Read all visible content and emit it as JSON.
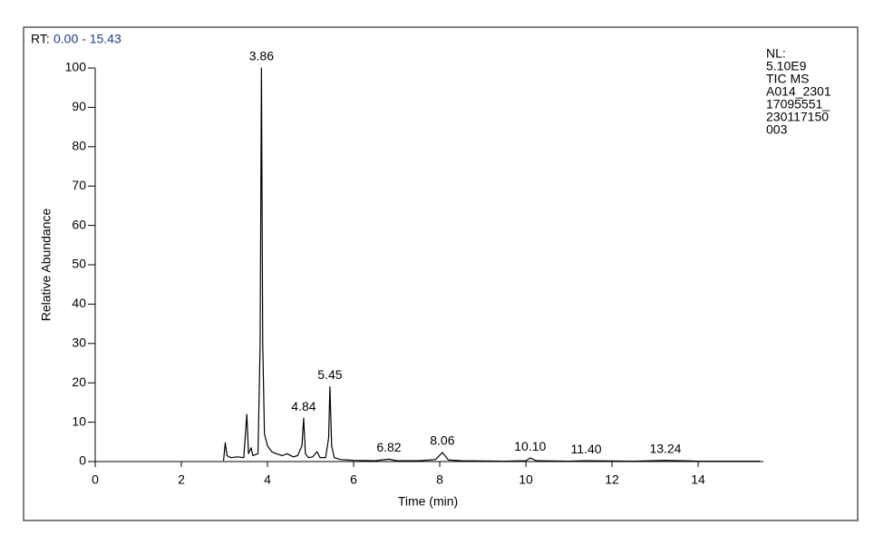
{
  "chart_data": {
    "type": "line",
    "rt_label": "RT:",
    "rt_range": "0.00 - 15.43",
    "info": [
      "NL:",
      "5.10E9",
      "TIC  MS",
      "A014_2301",
      "17095551_",
      "230117150",
      "003"
    ],
    "x_label": "Time (min)",
    "y_label": "Relative Abundance",
    "color": "#000000",
    "xlim": [
      0,
      15.43
    ],
    "ylim": [
      0,
      100
    ],
    "xticks": [
      0,
      2,
      4,
      6,
      8,
      10,
      12,
      14
    ],
    "yticks": [
      0,
      10,
      20,
      30,
      40,
      50,
      60,
      70,
      80,
      90,
      100
    ],
    "x": [
      2.98,
      3.02,
      3.06,
      3.15,
      3.3,
      3.45,
      3.52,
      3.56,
      3.62,
      3.66,
      3.78,
      3.83,
      3.86,
      3.89,
      3.93,
      4.0,
      4.1,
      4.2,
      4.35,
      4.45,
      4.6,
      4.7,
      4.8,
      4.84,
      4.88,
      4.95,
      5.05,
      5.15,
      5.22,
      5.35,
      5.42,
      5.45,
      5.49,
      5.55,
      5.7,
      6.0,
      6.5,
      6.82,
      7.0,
      7.5,
      7.9,
      8.06,
      8.2,
      8.5,
      9.5,
      10.0,
      10.1,
      10.25,
      11.0,
      11.4,
      12.5,
      13.24,
      14.0,
      15.43
    ],
    "values": [
      0.2,
      4.8,
      1.5,
      1.0,
      1.2,
      1.0,
      12,
      2,
      3.5,
      1.5,
      2,
      30,
      100,
      30,
      7,
      4,
      2.5,
      2,
      1.5,
      2,
      1.2,
      1.5,
      4,
      11,
      2,
      1,
      1.2,
      2.5,
      1,
      1,
      6,
      19,
      4,
      1,
      0.5,
      0.3,
      0.2,
      0.6,
      0.2,
      0.2,
      0.5,
      2.3,
      0.4,
      0.2,
      0.1,
      0.2,
      0.9,
      0.2,
      0.1,
      0.2,
      0.1,
      0.3,
      0.1,
      0.1
    ],
    "peaks": [
      {
        "x": 3.86,
        "y": 100,
        "label": "3.86"
      },
      {
        "x": 4.84,
        "y": 11,
        "label": "4.84"
      },
      {
        "x": 5.45,
        "y": 19,
        "label": "5.45"
      },
      {
        "x": 6.82,
        "y": 0.6,
        "label": "6.82"
      },
      {
        "x": 8.06,
        "y": 2.3,
        "label": "8.06"
      },
      {
        "x": 10.1,
        "y": 0.9,
        "label": "10.10"
      },
      {
        "x": 11.4,
        "y": 0.2,
        "label": "11.40"
      },
      {
        "x": 13.24,
        "y": 0.3,
        "label": "13.24"
      }
    ]
  }
}
